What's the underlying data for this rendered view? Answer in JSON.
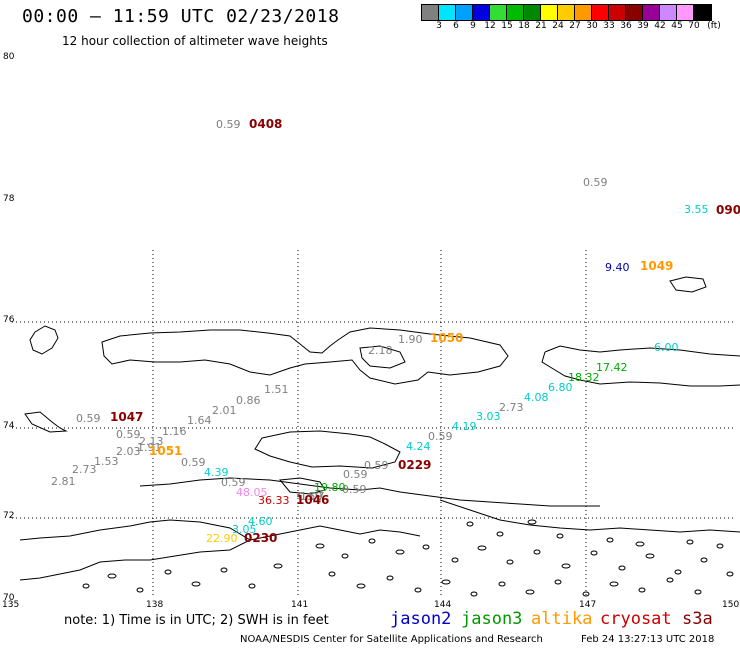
{
  "header": {
    "title": "00:00 – 11:59 UTC 02/23/2018",
    "subtitle": "12 hour collection of altimeter wave heights"
  },
  "colorbar": {
    "colors": [
      "#808080",
      "#00e5ff",
      "#00a0ff",
      "#0000e0",
      "#33dd33",
      "#00bb00",
      "#008800",
      "#ffff00",
      "#ffcc00",
      "#ff9900",
      "#ff0000",
      "#cc0000",
      "#880000",
      "#990099",
      "#cc88ff",
      "#ff99ff",
      "#000000"
    ],
    "labels": [
      "3",
      "6",
      "9",
      "12",
      "15",
      "18",
      "21",
      "24",
      "27",
      "30",
      "33",
      "36",
      "39",
      "42",
      "45",
      "70"
    ],
    "unit": "(ft)"
  },
  "axes": {
    "lat_labels": [
      "80",
      "78",
      "76",
      "74",
      "72",
      "70"
    ],
    "lon_labels": [
      "135",
      "138",
      "141",
      "144",
      "147",
      "150"
    ]
  },
  "observations": [
    {
      "text": "0.59",
      "color": "#808080"
    },
    {
      "text": "0408",
      "color": "#880000",
      "time": true
    },
    {
      "text": "0.59",
      "color": "#808080"
    },
    {
      "text": "3.55",
      "color": "#00cccc"
    },
    {
      "text": "090",
      "color": "#880000",
      "time": true
    },
    {
      "text": "9.40",
      "color": "#0000aa"
    },
    {
      "text": "1049",
      "color": "#ff9900",
      "time": true
    },
    {
      "text": "1.90",
      "color": "#808080"
    },
    {
      "text": "1050",
      "color": "#ff9900",
      "time": true
    },
    {
      "text": "2.18",
      "color": "#808080"
    },
    {
      "text": "6.00",
      "color": "#00cccc"
    },
    {
      "text": "17.42",
      "color": "#00aa00"
    },
    {
      "text": "18.32",
      "color": "#00aa00"
    },
    {
      "text": "6.80",
      "color": "#00cccc"
    },
    {
      "text": "4.08",
      "color": "#00cccc"
    },
    {
      "text": "2.73",
      "color": "#808080"
    },
    {
      "text": "3.03",
      "color": "#00cccc"
    },
    {
      "text": "4.19",
      "color": "#00cccc"
    },
    {
      "text": "0.59",
      "color": "#808080"
    },
    {
      "text": "4.24",
      "color": "#00cccc"
    },
    {
      "text": "0.59",
      "color": "#808080"
    },
    {
      "text": "0229",
      "color": "#880000",
      "time": true
    },
    {
      "text": "0.59",
      "color": "#808080"
    },
    {
      "text": "1.51",
      "color": "#808080"
    },
    {
      "text": "0.86",
      "color": "#808080"
    },
    {
      "text": "2.01",
      "color": "#808080"
    },
    {
      "text": "1.64",
      "color": "#808080"
    },
    {
      "text": "0.59",
      "color": "#808080"
    },
    {
      "text": "1047",
      "color": "#880000",
      "time": true
    },
    {
      "text": "0.59",
      "color": "#808080"
    },
    {
      "text": "1.16",
      "color": "#808080"
    },
    {
      "text": "2.13",
      "color": "#808080"
    },
    {
      "text": "1.91",
      "color": "#808080"
    },
    {
      "text": "2.03",
      "color": "#808080"
    },
    {
      "text": "1051",
      "color": "#ff9900",
      "time": true
    },
    {
      "text": "0.59",
      "color": "#808080"
    },
    {
      "text": "1.53",
      "color": "#808080"
    },
    {
      "text": "0.59",
      "color": "#808080"
    },
    {
      "text": "2.73",
      "color": "#808080"
    },
    {
      "text": "4.39",
      "color": "#00cccc"
    },
    {
      "text": "2.81",
      "color": "#808080"
    },
    {
      "text": "0.59",
      "color": "#808080"
    },
    {
      "text": "0.59",
      "color": "#808080"
    },
    {
      "text": "19.80",
      "color": "#00aa00"
    },
    {
      "text": "48.05",
      "color": "#ee88ee"
    },
    {
      "text": "1.07",
      "color": "#808080"
    },
    {
      "text": "36.33",
      "color": "#cc0000"
    },
    {
      "text": "1046",
      "color": "#880000",
      "time": true
    },
    {
      "text": "4.60",
      "color": "#00cccc"
    },
    {
      "text": "3.05",
      "color": "#00cccc"
    },
    {
      "text": "22.90",
      "color": "#ffcc00"
    },
    {
      "text": "0230",
      "color": "#880000",
      "time": true
    }
  ],
  "footer": {
    "note": "note:  1) Time is in UTC;  2) SWH is in feet",
    "satellites": [
      {
        "name": "jason2",
        "color": "#0000cc"
      },
      {
        "name": "jason3",
        "color": "#009900"
      },
      {
        "name": "altika",
        "color": "#ff9900"
      },
      {
        "name": "cryosat",
        "color": "#cc0000"
      },
      {
        "name": "s3a",
        "color": "#880000"
      }
    ],
    "credit": "NOAA/NESDIS Center for Satellite Applications and Research",
    "timestamp": "Feb 24 13:27:13 UTC 2018"
  }
}
